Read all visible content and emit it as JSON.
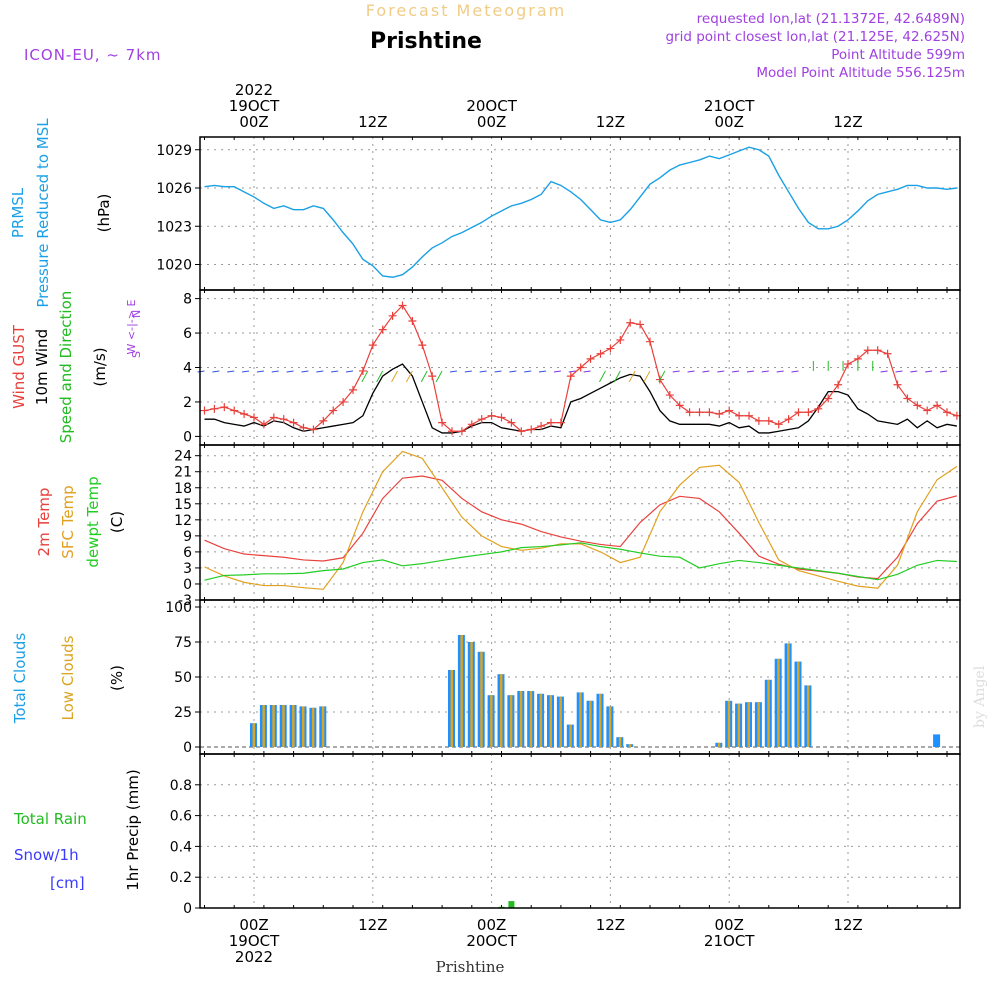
{
  "header": {
    "title": "Forecast Meteogram",
    "place": "Prishtine",
    "model": "ICON-EU, ~ 7km",
    "requested": "requested lon,lat (21.1372E, 42.6489N)",
    "gridpoint": "grid point closest lon,lat (21.125E, 42.625N)",
    "point_alt": "Point Altitude 599m",
    "model_alt": "Model Point Altitude 556.125m",
    "credit": "by Angel",
    "footer": "Prishtine"
  },
  "colors": {
    "pressure": "#1aa0e6",
    "gust": "#e8413c",
    "wind": "#000000",
    "winddir": "#22bb22",
    "temp": "#e8413c",
    "sfc": "#e0a020",
    "dewpt": "#22cc22",
    "total_clouds": "#1e90ff",
    "low_clouds": "#daa520",
    "rain": "#22bb22",
    "snow": "#3a3aff",
    "meta": "#a040e0"
  },
  "time_axis": {
    "top_labels": [
      {
        "lines": [
          "2022",
          "19OCT",
          "00Z"
        ]
      },
      {
        "lines": [
          "12Z"
        ]
      },
      {
        "lines": [
          "20OCT",
          "00Z"
        ]
      },
      {
        "lines": [
          "12Z"
        ]
      },
      {
        "lines": [
          "21OCT",
          "00Z"
        ]
      },
      {
        "lines": [
          "12Z"
        ]
      }
    ],
    "bottom_labels": [
      {
        "lines": [
          "00Z",
          "19OCT",
          "2022"
        ]
      },
      {
        "lines": [
          "12Z"
        ]
      },
      {
        "lines": [
          "00Z",
          "20OCT"
        ]
      },
      {
        "lines": [
          "12Z"
        ]
      },
      {
        "lines": [
          "00Z",
          "21OCT"
        ]
      },
      {
        "lines": [
          "12Z"
        ]
      }
    ]
  },
  "chart_data": [
    {
      "type": "line",
      "ylabel": [
        "PRMSL",
        "Pressure Reduced to MSL",
        "(hPa)"
      ],
      "ylim": [
        1018,
        1030
      ],
      "yticks": [
        "1020",
        "1023",
        "1026",
        "1029"
      ],
      "x": [
        -5,
        -4,
        -3,
        -2,
        -1,
        0,
        1,
        2,
        3,
        4,
        5,
        6,
        7,
        8,
        9,
        10,
        11,
        12,
        13,
        14,
        15,
        16,
        17,
        18,
        19,
        20,
        21,
        22,
        23,
        24,
        25,
        26,
        27,
        28,
        29,
        30,
        31,
        32,
        33,
        34,
        35,
        36,
        37,
        38,
        39,
        40,
        41,
        42,
        43,
        44,
        45,
        46,
        47,
        48,
        49,
        50,
        51,
        52,
        53,
        54,
        55,
        56,
        57,
        58,
        59,
        60,
        61,
        62,
        63,
        64,
        65,
        66,
        67,
        68,
        69,
        70,
        71
      ],
      "series": [
        {
          "values": [
            1026.1,
            1026.2,
            1026.1,
            1026.1,
            1025.7,
            1025.3,
            1024.8,
            1024.4,
            1024.6,
            1024.3,
            1024.3,
            1024.6,
            1024.4,
            1023.5,
            1022.5,
            1021.6,
            1020.4,
            1019.9,
            1019.1,
            1019.0,
            1019.2,
            1019.8,
            1020.6,
            1021.3,
            1021.7,
            1022.2,
            1022.5,
            1022.9,
            1023.3,
            1023.8,
            1024.2,
            1024.6,
            1024.8,
            1025.1,
            1025.5,
            1026.5,
            1026.2,
            1025.7,
            1025.1,
            1024.3,
            1023.5,
            1023.3,
            1023.5,
            1024.3,
            1025.3,
            1026.3,
            1026.8,
            1027.4,
            1027.8,
            1028.0,
            1028.2,
            1028.5,
            1028.3,
            1028.6,
            1028.9,
            1029.2,
            1029.0,
            1028.5,
            1027.0,
            1025.7,
            1024.4,
            1023.3,
            1022.8,
            1022.8,
            1023.0,
            1023.5,
            1024.2,
            1025.0,
            1025.5,
            1025.7,
            1025.9,
            1026.2,
            1026.2,
            1026.0,
            1026.0,
            1025.9,
            1026.0
          ]
        }
      ]
    },
    {
      "type": "line",
      "ylabel": [
        "Wind GUST",
        "10m Wind",
        "Speed and Direction",
        "(m/s)"
      ],
      "ylim": [
        -0.5,
        8.5
      ],
      "yticks": [
        "0",
        "2",
        "4",
        "6",
        "8"
      ],
      "compass": [
        "N",
        "W <-|-> E",
        "S"
      ],
      "x": [
        -5,
        -4,
        -3,
        -2,
        -1,
        0,
        1,
        2,
        3,
        4,
        5,
        6,
        7,
        8,
        9,
        10,
        11,
        12,
        13,
        14,
        15,
        16,
        17,
        18,
        19,
        20,
        21,
        22,
        23,
        24,
        25,
        26,
        27,
        28,
        29,
        30,
        31,
        32,
        33,
        34,
        35,
        36,
        37,
        38,
        39,
        40,
        41,
        42,
        43,
        44,
        45,
        46,
        47,
        48,
        49,
        50,
        51,
        52,
        53,
        54,
        55,
        56,
        57,
        58,
        59,
        60,
        61,
        62,
        63,
        64,
        65,
        66,
        67,
        68,
        69,
        70,
        71
      ],
      "series": [
        {
          "name": "Wind GUST",
          "values": [
            1.5,
            1.6,
            1.7,
            1.5,
            1.3,
            1.1,
            0.7,
            1.1,
            1.0,
            0.8,
            0.5,
            0.4,
            0.9,
            1.5,
            2.0,
            2.7,
            3.8,
            5.3,
            6.2,
            7.0,
            7.6,
            6.7,
            5.3,
            3.5,
            0.8,
            0.3,
            0.3,
            0.7,
            1.0,
            1.2,
            1.1,
            0.8,
            0.3,
            0.4,
            0.6,
            0.8,
            0.8,
            3.5,
            4.0,
            4.5,
            4.8,
            5.1,
            5.6,
            6.6,
            6.5,
            5.5,
            3.3,
            2.4,
            1.8,
            1.4,
            1.4,
            1.4,
            1.3,
            1.5,
            1.2,
            1.2,
            0.9,
            0.9,
            0.7,
            1.0,
            1.4,
            1.4,
            1.6,
            2.2,
            3.0,
            4.2,
            4.5,
            5.0,
            5.0,
            4.8,
            3.0,
            2.2,
            1.8,
            1.5,
            1.8,
            1.4,
            1.2
          ]
        },
        {
          "name": "10m Wind",
          "values": [
            1.0,
            1.0,
            0.8,
            0.7,
            0.6,
            0.8,
            0.6,
            0.9,
            0.8,
            0.5,
            0.3,
            0.4,
            0.5,
            0.6,
            0.7,
            0.8,
            1.2,
            2.5,
            3.5,
            3.9,
            4.2,
            3.5,
            2.0,
            0.5,
            0.2,
            0.2,
            0.3,
            0.6,
            0.8,
            0.8,
            0.5,
            0.4,
            0.3,
            0.4,
            0.4,
            0.6,
            0.5,
            2.0,
            2.2,
            2.5,
            2.8,
            3.1,
            3.4,
            3.6,
            3.5,
            2.6,
            1.5,
            0.9,
            0.7,
            0.7,
            0.7,
            0.7,
            0.6,
            0.8,
            0.5,
            0.6,
            0.2,
            0.2,
            0.3,
            0.4,
            0.5,
            0.9,
            1.7,
            2.6,
            2.6,
            2.4,
            1.6,
            1.3,
            0.9,
            0.8,
            0.7,
            1.0,
            0.5,
            0.9,
            0.5,
            0.7,
            0.6
          ]
        }
      ]
    },
    {
      "type": "line",
      "ylabel": [
        "2m Temp",
        "SFC Temp",
        "dewpt Temp",
        "(C)"
      ],
      "ylim": [
        -3,
        26
      ],
      "yticks": [
        "-3",
        "0",
        "3",
        "6",
        "9",
        "12",
        "15",
        "18",
        "21",
        "24"
      ],
      "x": [
        -5,
        -3,
        -1,
        1,
        3,
        5,
        7,
        9,
        11,
        13,
        15,
        17,
        19,
        21,
        23,
        25,
        27,
        29,
        31,
        33,
        35,
        37,
        39,
        41,
        43,
        45,
        47,
        49,
        51,
        53,
        55,
        57,
        59,
        61,
        63,
        65,
        67,
        69,
        71
      ],
      "series": [
        {
          "name": "2m Temp",
          "values": [
            8.2,
            6.6,
            5.6,
            5.3,
            5.0,
            4.5,
            4.3,
            4.9,
            9.5,
            16.0,
            19.8,
            20.2,
            19.4,
            16.0,
            13.5,
            12.0,
            11.2,
            9.8,
            8.8,
            8.0,
            7.4,
            7.0,
            11.5,
            14.8,
            16.4,
            16.0,
            13.5,
            9.5,
            5.2,
            3.7,
            2.8,
            2.4,
            2.0,
            1.3,
            1.0,
            5.0,
            11.3,
            15.5,
            16.5
          ]
        },
        {
          "name": "SFC Temp",
          "values": [
            3.2,
            1.5,
            0.3,
            -0.3,
            -0.3,
            -0.7,
            -1.0,
            4.0,
            13.5,
            21.0,
            24.8,
            23.5,
            18.0,
            12.5,
            9.0,
            7.0,
            6.3,
            6.7,
            7.5,
            7.5,
            6.0,
            4.0,
            5.0,
            13.5,
            18.5,
            21.8,
            22.2,
            19.0,
            11.5,
            4.5,
            2.5,
            1.5,
            0.5,
            -0.4,
            -0.8,
            3.5,
            13.5,
            19.5,
            22.0
          ]
        },
        {
          "name": "dewpt Temp",
          "values": [
            0.7,
            1.6,
            1.7,
            1.9,
            1.9,
            2.0,
            2.5,
            2.8,
            4.0,
            4.5,
            3.4,
            3.8,
            4.4,
            5.0,
            5.5,
            6.0,
            6.8,
            7.0,
            7.3,
            7.7,
            7.0,
            6.5,
            5.8,
            5.2,
            5.0,
            3.0,
            3.8,
            4.4,
            4.0,
            3.5,
            3.0,
            2.5,
            2.0,
            1.4,
            0.8,
            1.8,
            3.5,
            4.4,
            4.2
          ]
        }
      ]
    },
    {
      "type": "bar",
      "ylabel": [
        "Total Clouds",
        "Low Clouds",
        "(%)"
      ],
      "ylim": [
        -5,
        105
      ],
      "yticks": [
        "0",
        "25",
        "50",
        "75",
        "100"
      ],
      "x": [
        -5,
        -4,
        -3,
        -2,
        -1,
        0,
        1,
        2,
        3,
        4,
        5,
        6,
        7,
        8,
        9,
        10,
        11,
        12,
        13,
        14,
        15,
        16,
        17,
        18,
        19,
        20,
        21,
        22,
        23,
        24,
        25,
        26,
        27,
        28,
        29,
        30,
        31,
        32,
        33,
        34,
        35,
        36,
        37,
        38,
        39,
        40,
        41,
        42,
        43,
        44,
        45,
        46,
        47,
        48,
        49,
        50,
        51,
        52,
        53,
        54,
        55,
        56,
        57,
        58,
        59,
        60,
        61,
        62,
        63,
        64,
        65,
        66,
        67,
        68,
        69,
        70,
        71
      ],
      "series": [
        {
          "name": "Total Clouds",
          "values": [
            0,
            0,
            0,
            0,
            0,
            17,
            30,
            30,
            30,
            30,
            29,
            28,
            29,
            0,
            0,
            0,
            0,
            0,
            0,
            0,
            0,
            0,
            0,
            0,
            0,
            55,
            80,
            75,
            68,
            37,
            52,
            37,
            40,
            40,
            38,
            37,
            36,
            16,
            39,
            33,
            38,
            29,
            7,
            2,
            0,
            0,
            0,
            0,
            0,
            0,
            0,
            0,
            3,
            33,
            31,
            32,
            32,
            48,
            63,
            74,
            61,
            44,
            0,
            0,
            0,
            0,
            0,
            0,
            0,
            0,
            0,
            0,
            0,
            0,
            9,
            0,
            0
          ]
        },
        {
          "name": "Low Clouds",
          "values": [
            0,
            0,
            0,
            0,
            0,
            17,
            30,
            30,
            30,
            30,
            29,
            28,
            29,
            0,
            0,
            0,
            0,
            0,
            0,
            0,
            0,
            0,
            0,
            0,
            0,
            55,
            80,
            75,
            68,
            37,
            52,
            37,
            40,
            40,
            38,
            37,
            36,
            16,
            39,
            33,
            38,
            29,
            7,
            2,
            0,
            0,
            0,
            0,
            0,
            0,
            0,
            0,
            3,
            33,
            31,
            32,
            32,
            48,
            63,
            74,
            61,
            44,
            0,
            0,
            0,
            0,
            0,
            0,
            0,
            0,
            0,
            0,
            0,
            0,
            0,
            0,
            0
          ]
        }
      ]
    },
    {
      "type": "bar",
      "ylabel": [
        "1hr Precip (mm)"
      ],
      "side_labels": [
        "Total  Rain",
        "Snow/1h",
        "[cm]"
      ],
      "ylim": [
        0,
        1.0
      ],
      "yticks": [
        "0",
        "0.2",
        "0.4",
        "0.6",
        "0.8"
      ],
      "x": [
        24,
        25,
        26
      ],
      "series": [
        {
          "name": "Total Rain",
          "values": [
            0.004,
            0.008,
            0.045
          ]
        }
      ]
    }
  ]
}
